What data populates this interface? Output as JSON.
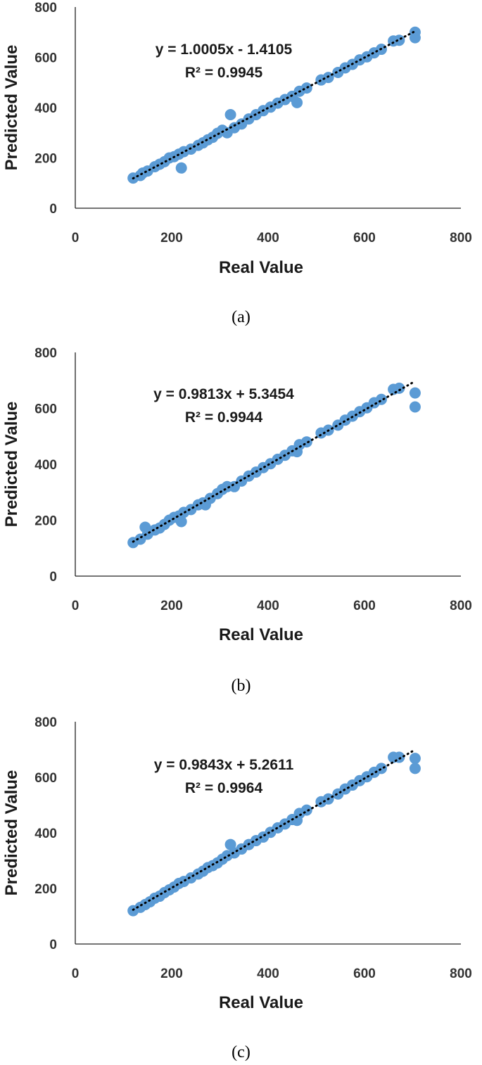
{
  "chart_data": [
    {
      "type": "scatter",
      "caption": "(a)",
      "xlabel": "Real Value",
      "ylabel": "Predicted Value",
      "xlim": [
        0,
        800
      ],
      "ylim": [
        0,
        800
      ],
      "xticks": [
        "0",
        "200",
        "400",
        "600",
        "800"
      ],
      "yticks": [
        "0",
        "200",
        "400",
        "600",
        "800"
      ],
      "equation": "y = 1.0005x - 1.4105",
      "r2": "R² = 0.9945",
      "trendline": {
        "slope": 1.0005,
        "intercept": -1.4105,
        "x_range": [
          120,
          705
        ],
        "style": "dotted"
      },
      "marker_color": "#5B9BD5",
      "points": [
        [
          120,
          120
        ],
        [
          135,
          130
        ],
        [
          140,
          140
        ],
        [
          150,
          148
        ],
        [
          165,
          165
        ],
        [
          175,
          175
        ],
        [
          185,
          185
        ],
        [
          195,
          200
        ],
        [
          205,
          205
        ],
        [
          215,
          215
        ],
        [
          220,
          160
        ],
        [
          225,
          225
        ],
        [
          240,
          235
        ],
        [
          255,
          250
        ],
        [
          265,
          260
        ],
        [
          275,
          272
        ],
        [
          285,
          282
        ],
        [
          295,
          298
        ],
        [
          305,
          310
        ],
        [
          315,
          300
        ],
        [
          322,
          372
        ],
        [
          330,
          320
        ],
        [
          345,
          335
        ],
        [
          360,
          355
        ],
        [
          375,
          372
        ],
        [
          390,
          388
        ],
        [
          405,
          402
        ],
        [
          420,
          418
        ],
        [
          435,
          432
        ],
        [
          450,
          445
        ],
        [
          460,
          420
        ],
        [
          465,
          465
        ],
        [
          480,
          478
        ],
        [
          510,
          510
        ],
        [
          525,
          520
        ],
        [
          545,
          540
        ],
        [
          560,
          558
        ],
        [
          575,
          572
        ],
        [
          590,
          590
        ],
        [
          605,
          602
        ],
        [
          620,
          618
        ],
        [
          635,
          632
        ],
        [
          660,
          665
        ],
        [
          672,
          668
        ],
        [
          705,
          700
        ],
        [
          705,
          678
        ]
      ]
    },
    {
      "type": "scatter",
      "caption": "(b)",
      "xlabel": "Real Value",
      "ylabel": "Predicted Value",
      "xlim": [
        0,
        800
      ],
      "ylim": [
        0,
        800
      ],
      "xticks": [
        "0",
        "200",
        "400",
        "600",
        "800"
      ],
      "yticks": [
        "0",
        "200",
        "400",
        "600",
        "800"
      ],
      "equation": "y = 0.9813x + 5.3454",
      "r2": "R² = 0.9944",
      "trendline": {
        "slope": 0.9813,
        "intercept": 5.3454,
        "x_range": [
          120,
          705
        ],
        "style": "dotted"
      },
      "marker_color": "#5B9BD5",
      "points": [
        [
          120,
          120
        ],
        [
          135,
          132
        ],
        [
          145,
          175
        ],
        [
          150,
          150
        ],
        [
          165,
          165
        ],
        [
          175,
          172
        ],
        [
          185,
          185
        ],
        [
          195,
          200
        ],
        [
          205,
          210
        ],
        [
          215,
          215
        ],
        [
          220,
          195
        ],
        [
          225,
          228
        ],
        [
          240,
          238
        ],
        [
          255,
          255
        ],
        [
          265,
          262
        ],
        [
          270,
          255
        ],
        [
          280,
          278
        ],
        [
          295,
          295
        ],
        [
          305,
          310
        ],
        [
          315,
          320
        ],
        [
          330,
          320
        ],
        [
          345,
          340
        ],
        [
          360,
          358
        ],
        [
          375,
          372
        ],
        [
          390,
          388
        ],
        [
          405,
          402
        ],
        [
          420,
          418
        ],
        [
          435,
          432
        ],
        [
          450,
          448
        ],
        [
          460,
          445
        ],
        [
          465,
          470
        ],
        [
          480,
          480
        ],
        [
          510,
          512
        ],
        [
          525,
          522
        ],
        [
          545,
          540
        ],
        [
          560,
          558
        ],
        [
          575,
          572
        ],
        [
          590,
          588
        ],
        [
          605,
          602
        ],
        [
          620,
          620
        ],
        [
          635,
          632
        ],
        [
          660,
          668
        ],
        [
          672,
          672
        ],
        [
          705,
          655
        ],
        [
          705,
          605
        ]
      ]
    },
    {
      "type": "scatter",
      "caption": "(c)",
      "xlabel": "Real Value",
      "ylabel": "Predicted Value",
      "xlim": [
        0,
        800
      ],
      "ylim": [
        0,
        800
      ],
      "xticks": [
        "0",
        "200",
        "400",
        "600",
        "800"
      ],
      "yticks": [
        "0",
        "200",
        "400",
        "600",
        "800"
      ],
      "equation": "y = 0.9843x + 5.2611",
      "r2": "R² = 0.9964",
      "trendline": {
        "slope": 0.9843,
        "intercept": 5.2611,
        "x_range": [
          120,
          705
        ],
        "style": "dotted"
      },
      "marker_color": "#5B9BD5",
      "points": [
        [
          120,
          120
        ],
        [
          135,
          132
        ],
        [
          145,
          142
        ],
        [
          155,
          152
        ],
        [
          165,
          165
        ],
        [
          175,
          172
        ],
        [
          185,
          185
        ],
        [
          195,
          195
        ],
        [
          205,
          205
        ],
        [
          215,
          218
        ],
        [
          225,
          225
        ],
        [
          240,
          238
        ],
        [
          255,
          252
        ],
        [
          265,
          262
        ],
        [
          275,
          275
        ],
        [
          285,
          282
        ],
        [
          295,
          292
        ],
        [
          305,
          305
        ],
        [
          315,
          318
        ],
        [
          322,
          358
        ],
        [
          330,
          328
        ],
        [
          345,
          342
        ],
        [
          360,
          358
        ],
        [
          375,
          372
        ],
        [
          390,
          385
        ],
        [
          405,
          402
        ],
        [
          420,
          418
        ],
        [
          435,
          432
        ],
        [
          450,
          448
        ],
        [
          460,
          445
        ],
        [
          465,
          470
        ],
        [
          480,
          482
        ],
        [
          510,
          512
        ],
        [
          525,
          522
        ],
        [
          545,
          540
        ],
        [
          560,
          558
        ],
        [
          575,
          572
        ],
        [
          590,
          588
        ],
        [
          605,
          602
        ],
        [
          620,
          618
        ],
        [
          635,
          632
        ],
        [
          660,
          672
        ],
        [
          672,
          672
        ],
        [
          705,
          668
        ],
        [
          705,
          632
        ]
      ]
    }
  ]
}
